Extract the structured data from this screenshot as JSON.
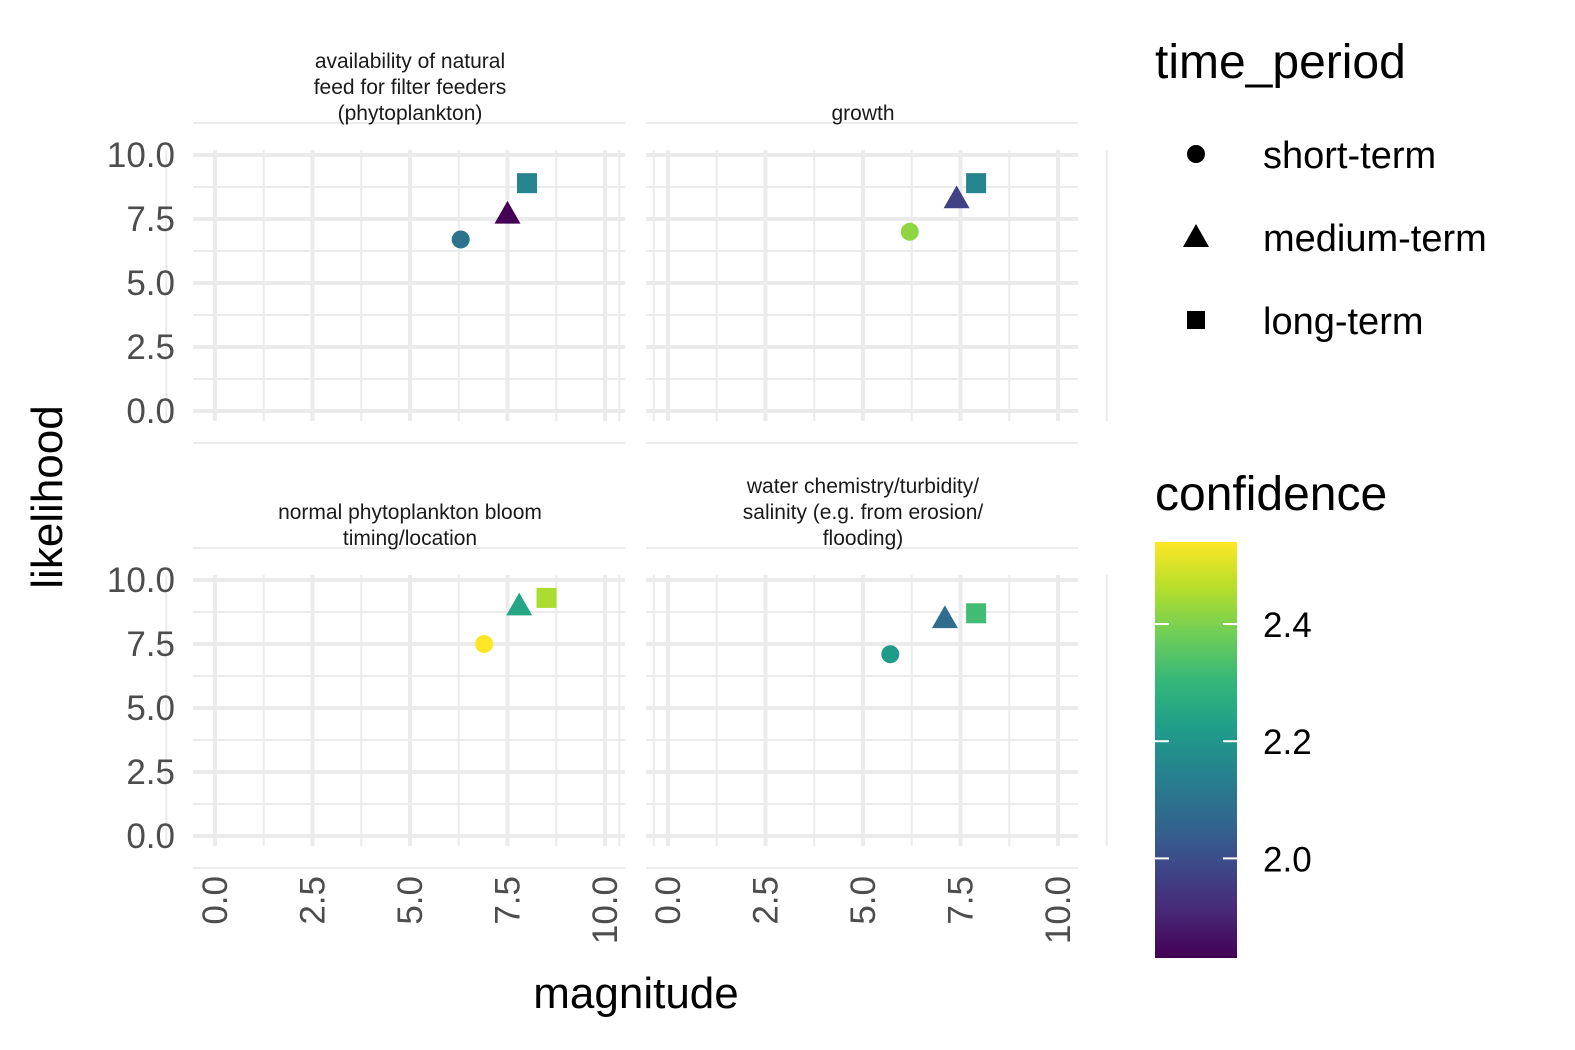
{
  "chart_data": {
    "type": "scatter",
    "facet_layout": "2x2 grid",
    "xlabel": "magnitude",
    "ylabel": "likelihood",
    "xlim": [
      0,
      10
    ],
    "ylim": [
      0,
      10
    ],
    "x_ticks": [
      "0.0",
      "2.5",
      "5.0",
      "7.5",
      "10.0"
    ],
    "y_ticks": [
      "0.0",
      "2.5",
      "5.0",
      "7.5",
      "10.0"
    ],
    "grid": true,
    "shape_legend": {
      "title": "time_period",
      "entries": [
        {
          "label": "short-term",
          "shape": "circle"
        },
        {
          "label": "medium-term",
          "shape": "triangle"
        },
        {
          "label": "long-term",
          "shape": "square"
        }
      ]
    },
    "color_legend": {
      "title": "confidence",
      "scale": "viridis",
      "range": [
        1.83,
        2.54
      ],
      "breaks": [
        "2.0",
        "2.2",
        "2.4"
      ],
      "break_values": [
        2.0,
        2.2,
        2.4
      ]
    },
    "panels": [
      {
        "title_lines": [
          "availability of natural",
          "feed for filter feeders",
          "(phytoplankton)"
        ],
        "points": [
          {
            "time_period": "short-term",
            "x": 6.3,
            "y": 6.7,
            "confidence": 2.1
          },
          {
            "time_period": "medium-term",
            "x": 7.5,
            "y": 7.7,
            "confidence": 1.83
          },
          {
            "time_period": "long-term",
            "x": 8.0,
            "y": 8.9,
            "confidence": 2.15
          }
        ]
      },
      {
        "title_lines": [
          "growth"
        ],
        "points": [
          {
            "time_period": "short-term",
            "x": 6.2,
            "y": 7.0,
            "confidence": 2.42
          },
          {
            "time_period": "medium-term",
            "x": 7.4,
            "y": 8.3,
            "confidence": 1.97
          },
          {
            "time_period": "long-term",
            "x": 7.9,
            "y": 8.9,
            "confidence": 2.15
          }
        ]
      },
      {
        "title_lines": [
          "normal phytoplankton bloom",
          "timing/location"
        ],
        "points": [
          {
            "time_period": "short-term",
            "x": 6.9,
            "y": 7.5,
            "confidence": 2.54
          },
          {
            "time_period": "medium-term",
            "x": 7.8,
            "y": 9.0,
            "confidence": 2.25
          },
          {
            "time_period": "long-term",
            "x": 8.5,
            "y": 9.3,
            "confidence": 2.45
          }
        ]
      },
      {
        "title_lines": [
          "water chemistry/turbidity/",
          "salinity (e.g. from erosion/",
          "flooding)"
        ],
        "points": [
          {
            "time_period": "short-term",
            "x": 5.7,
            "y": 7.1,
            "confidence": 2.22
          },
          {
            "time_period": "medium-term",
            "x": 7.1,
            "y": 8.5,
            "confidence": 2.08
          },
          {
            "time_period": "long-term",
            "x": 7.9,
            "y": 8.7,
            "confidence": 2.32
          }
        ]
      }
    ]
  }
}
